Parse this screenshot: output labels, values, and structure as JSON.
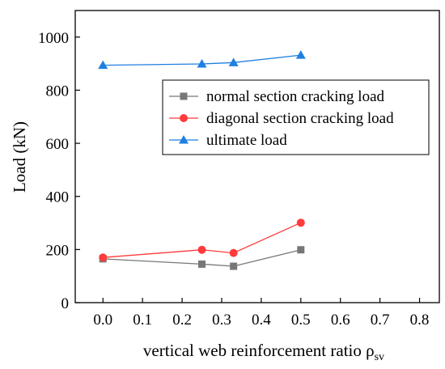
{
  "chart_data": {
    "type": "line",
    "xlabel": "vertical web reinforcement ratio ρ",
    "xlabel_subscript": "sv",
    "ylabel": "Load (kN)",
    "xlim": [
      -0.07,
      0.85
    ],
    "ylim": [
      0,
      1100
    ],
    "x_ticks": [
      "0.0",
      "0.1",
      "0.2",
      "0.3",
      "0.4",
      "0.5",
      "0.6",
      "0.7",
      "0.8"
    ],
    "x_tick_values": [
      0,
      0.1,
      0.2,
      0.3,
      0.4,
      0.5,
      0.6,
      0.7,
      0.8
    ],
    "y_ticks": [
      "0",
      "200",
      "400",
      "600",
      "800",
      "1000"
    ],
    "y_tick_values": [
      0,
      200,
      400,
      600,
      800,
      1000
    ],
    "grid": false,
    "legend_position": "upper-right",
    "series": [
      {
        "name": "normal section cracking load",
        "color": "#777777",
        "marker": "square",
        "x": [
          0,
          0.25,
          0.33,
          0.5
        ],
        "y": [
          165,
          145,
          137,
          199
        ]
      },
      {
        "name": "diagonal section cracking load",
        "color": "#ff3b3b",
        "marker": "circle",
        "x": [
          0,
          0.25,
          0.33,
          0.5
        ],
        "y": [
          170,
          199,
          187,
          301
        ]
      },
      {
        "name": "ultimate load",
        "color": "#1e7fe0",
        "marker": "triangle",
        "x": [
          0,
          0.25,
          0.33,
          0.5
        ],
        "y": [
          894,
          899,
          904,
          932
        ]
      }
    ]
  }
}
